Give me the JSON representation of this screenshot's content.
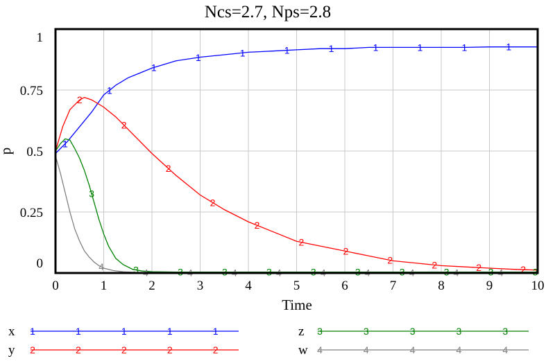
{
  "chart_data": {
    "type": "line",
    "title": "Ncs=2.7, Nps=2.8",
    "xlabel": "Time",
    "ylabel": "p",
    "xlim": [
      0,
      10
    ],
    "ylim": [
      0,
      1
    ],
    "x_ticks": [
      "0",
      "1",
      "2",
      "3",
      "4",
      "5",
      "6",
      "7",
      "8",
      "9",
      "10"
    ],
    "y_ticks": [
      "0",
      "0.25",
      "0.5",
      "0.75",
      "1"
    ],
    "grid": true,
    "legend_position": "bottom",
    "series": [
      {
        "name": "x",
        "marker": "1",
        "color": "#0000ff",
        "x": [
          0,
          0.25,
          0.5,
          0.75,
          1,
          1.25,
          1.5,
          1.75,
          2,
          2.5,
          3,
          3.5,
          4,
          4.5,
          5,
          5.5,
          6,
          6.5,
          7,
          7.5,
          8,
          8.5,
          9,
          9.5,
          10
        ],
        "y": [
          0.49,
          0.54,
          0.6,
          0.66,
          0.73,
          0.77,
          0.8,
          0.82,
          0.84,
          0.87,
          0.885,
          0.895,
          0.905,
          0.91,
          0.915,
          0.92,
          0.92,
          0.925,
          0.925,
          0.925,
          0.925,
          0.925,
          0.927,
          0.927,
          0.927
        ]
      },
      {
        "name": "y",
        "marker": "2",
        "color": "#ff0000",
        "x": [
          0,
          0.15,
          0.3,
          0.5,
          0.6,
          0.75,
          1,
          1.25,
          1.5,
          2,
          2.5,
          3,
          3.5,
          4,
          4.5,
          5,
          5.5,
          6,
          6.5,
          7,
          7.5,
          8,
          8.5,
          9,
          9.5,
          10
        ],
        "y": [
          0.5,
          0.6,
          0.67,
          0.71,
          0.72,
          0.71,
          0.68,
          0.64,
          0.59,
          0.49,
          0.4,
          0.32,
          0.26,
          0.21,
          0.17,
          0.13,
          0.11,
          0.09,
          0.07,
          0.05,
          0.04,
          0.03,
          0.025,
          0.02,
          0.015,
          0.012
        ]
      },
      {
        "name": "z",
        "marker": "3",
        "color": "#008000",
        "x": [
          0,
          0.1,
          0.2,
          0.3,
          0.4,
          0.5,
          0.6,
          0.7,
          0.8,
          0.9,
          1,
          1.1,
          1.25,
          1.4,
          1.6,
          1.8,
          2,
          2.5,
          3,
          4,
          5,
          6,
          7,
          8,
          9,
          10
        ],
        "y": [
          0.5,
          0.53,
          0.55,
          0.545,
          0.51,
          0.47,
          0.42,
          0.36,
          0.29,
          0.22,
          0.16,
          0.11,
          0.06,
          0.035,
          0.015,
          0.008,
          0.005,
          0.004,
          0.004,
          0.004,
          0.004,
          0.004,
          0.004,
          0.004,
          0.004,
          0.004
        ]
      },
      {
        "name": "w",
        "marker": "4",
        "color": "#808080",
        "x": [
          0,
          0.1,
          0.2,
          0.3,
          0.4,
          0.5,
          0.6,
          0.7,
          0.8,
          0.9,
          1,
          1.2,
          1.4,
          1.6,
          1.8,
          2,
          3,
          4,
          5,
          6,
          7,
          8,
          9,
          10
        ],
        "y": [
          0.48,
          0.41,
          0.33,
          0.25,
          0.18,
          0.13,
          0.09,
          0.065,
          0.045,
          0.03,
          0.02,
          0.01,
          0.005,
          0.003,
          0.002,
          0.001,
          0.001,
          0.001,
          0.001,
          0.001,
          0.001,
          0.001,
          0.001,
          0.001
        ]
      }
    ]
  }
}
